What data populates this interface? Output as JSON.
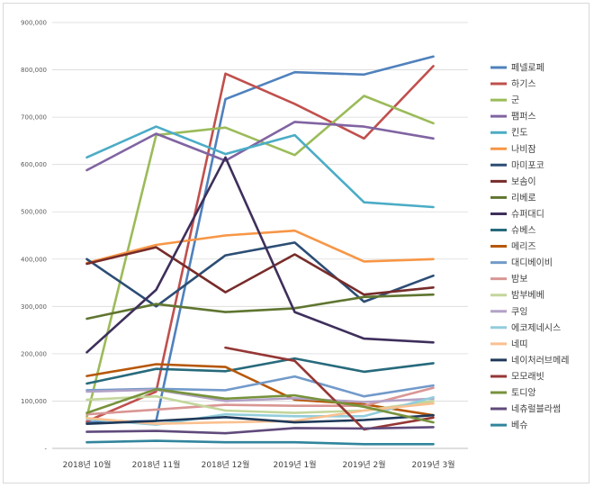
{
  "chart_data": {
    "type": "line",
    "title": "",
    "xlabel": "",
    "ylabel": "",
    "ylim": [
      0,
      900000
    ],
    "yticks": [
      0,
      100000,
      200000,
      300000,
      400000,
      500000,
      600000,
      700000,
      800000,
      900000
    ],
    "ytick_labels": [
      "-",
      "100,000",
      "200,000",
      "300,000",
      "400,000",
      "500,000",
      "600,000",
      "700,000",
      "800,000",
      "900,000"
    ],
    "categories": [
      "2018년 10월",
      "2018년 11월",
      "2018년 12월",
      "2019년 1월",
      "2019년 2월",
      "2019년 3월"
    ],
    "grid": true,
    "legend_position": "right",
    "series": [
      {
        "name": "페넬로페",
        "color": "#4f81bd",
        "values": [
          55000,
          58000,
          738000,
          795000,
          790000,
          828000
        ]
      },
      {
        "name": "하기스",
        "color": "#c0504d",
        "values": [
          57000,
          120000,
          792000,
          728000,
          655000,
          808000
        ]
      },
      {
        "name": "군",
        "color": "#9bbb59",
        "values": [
          67000,
          662000,
          678000,
          620000,
          745000,
          687000
        ]
      },
      {
        "name": "팸퍼스",
        "color": "#8064a2",
        "values": [
          588000,
          665000,
          608000,
          690000,
          680000,
          655000
        ]
      },
      {
        "name": "킨도",
        "color": "#4bacc6",
        "values": [
          615000,
          680000,
          622000,
          662000,
          520000,
          510000
        ]
      },
      {
        "name": "나비잠",
        "color": "#f79646",
        "values": [
          392000,
          430000,
          450000,
          460000,
          395000,
          400000
        ]
      },
      {
        "name": "마미포코",
        "color": "#2c4d75",
        "values": [
          400000,
          300000,
          408000,
          435000,
          310000,
          365000
        ]
      },
      {
        "name": "보솜이",
        "color": "#772c2a",
        "values": [
          390000,
          425000,
          330000,
          410000,
          325000,
          340000
        ]
      },
      {
        "name": "리베로",
        "color": "#5f7530",
        "values": [
          274000,
          305000,
          288000,
          296000,
          320000,
          325000
        ]
      },
      {
        "name": "슈퍼대디",
        "color": "#3e2f5b",
        "values": [
          203000,
          335000,
          615000,
          288000,
          232000,
          224000
        ]
      },
      {
        "name": "슈베스",
        "color": "#276a7c",
        "values": [
          137000,
          168000,
          163000,
          190000,
          162000,
          180000
        ]
      },
      {
        "name": "메리즈",
        "color": "#b65708",
        "values": [
          153000,
          178000,
          172000,
          103000,
          93000,
          70000
        ]
      },
      {
        "name": "대디베이비",
        "color": "#729aca",
        "values": [
          123000,
          126000,
          123000,
          152000,
          110000,
          133000
        ]
      },
      {
        "name": "밤보",
        "color": "#d99694",
        "values": [
          72000,
          82000,
          92000,
          90000,
          90000,
          128000
        ]
      },
      {
        "name": "밤부베베",
        "color": "#c3d69b",
        "values": [
          103000,
          110000,
          80000,
          75000,
          80000,
          100000
        ]
      },
      {
        "name": "쿠잉",
        "color": "#b3a2c7",
        "values": [
          120000,
          124000,
          100000,
          106000,
          98000,
          105000
        ]
      },
      {
        "name": "에코제네시스",
        "color": "#92cddc",
        "values": [
          62000,
          50000,
          72000,
          68000,
          68000,
          108000
        ]
      },
      {
        "name": "네띠",
        "color": "#fac090",
        "values": [
          64000,
          52000,
          55000,
          58000,
          80000,
          95000
        ]
      },
      {
        "name": "네이처러브메레",
        "color": "#1f3959",
        "values": [
          52000,
          58000,
          66000,
          55000,
          60000,
          70000
        ]
      },
      {
        "name": "모모래빗",
        "color": "#953735",
        "values": [
          null,
          null,
          213000,
          185000,
          40000,
          65000
        ]
      },
      {
        "name": "토디앙",
        "color": "#77933c",
        "values": [
          75000,
          125000,
          105000,
          112000,
          88000,
          55000
        ]
      },
      {
        "name": "네츄럴블라썸",
        "color": "#604a7b",
        "values": [
          35000,
          37000,
          32000,
          43000,
          42000,
          45000
        ]
      },
      {
        "name": "베슈",
        "color": "#31859c",
        "values": [
          13000,
          16000,
          13000,
          13000,
          9000,
          9000
        ]
      }
    ]
  }
}
